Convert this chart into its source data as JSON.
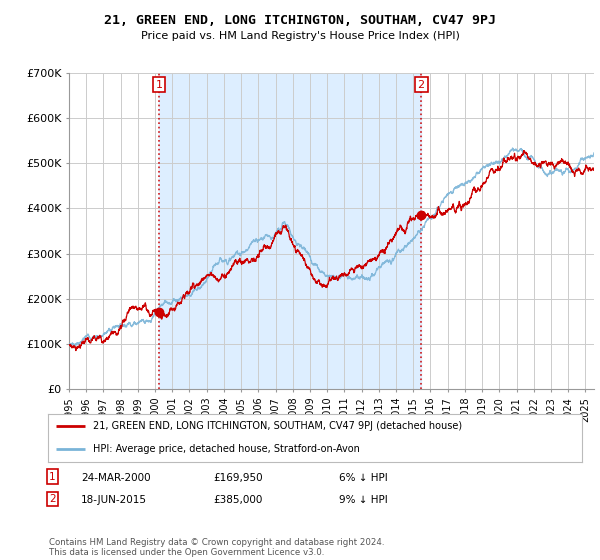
{
  "title": "21, GREEN END, LONG ITCHINGTON, SOUTHAM, CV47 9PJ",
  "subtitle": "Price paid vs. HM Land Registry's House Price Index (HPI)",
  "ylabel_ticks": [
    "£0",
    "£100K",
    "£200K",
    "£300K",
    "£400K",
    "£500K",
    "£600K",
    "£700K"
  ],
  "ytick_values": [
    0,
    100000,
    200000,
    300000,
    400000,
    500000,
    600000,
    700000
  ],
  "ylim": [
    0,
    700000
  ],
  "sale1_date": "24-MAR-2000",
  "sale1_price": 169950,
  "sale1_pct": "6% ↓ HPI",
  "sale2_date": "18-JUN-2015",
  "sale2_price": 385000,
  "sale2_pct": "9% ↓ HPI",
  "legend_line1": "21, GREEN END, LONG ITCHINGTON, SOUTHAM, CV47 9PJ (detached house)",
  "legend_line2": "HPI: Average price, detached house, Stratford-on-Avon",
  "footer": "Contains HM Land Registry data © Crown copyright and database right 2024.\nThis data is licensed under the Open Government Licence v3.0.",
  "hpi_color": "#7ab4d8",
  "price_color": "#cc0000",
  "grid_color": "#cccccc",
  "shade_color": "#ddeeff",
  "background_color": "#ffffff",
  "sale1_x_year": 2000.22,
  "sale2_x_year": 2015.46,
  "xmin": 1995.0,
  "xmax": 2025.5
}
